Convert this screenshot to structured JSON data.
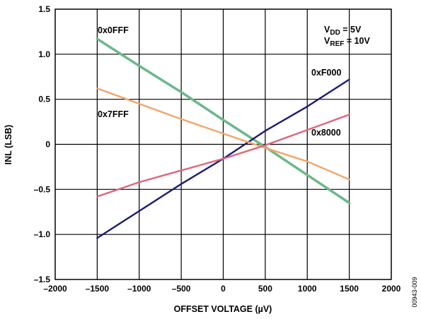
{
  "chart_data": {
    "type": "line",
    "xlabel": "OFFSET VOLTAGE (µV)",
    "ylabel": "INL (LSB)",
    "xlim": [
      -2000,
      2000
    ],
    "ylim": [
      -1.5,
      1.5
    ],
    "x_ticks": [
      -2000,
      -1500,
      -1000,
      -500,
      0,
      500,
      1000,
      1500,
      2000
    ],
    "x_tick_labels": [
      "–2000",
      "–1500",
      "–1000",
      "–500",
      "0",
      "500",
      "1000",
      "1500",
      "2000"
    ],
    "y_ticks": [
      -1.5,
      -1.0,
      -0.5,
      0,
      0.5,
      1.0,
      1.5
    ],
    "y_tick_labels": [
      "–1.5",
      "–1.0",
      "–0.5",
      "0",
      "0.5",
      "1.0",
      "1.5"
    ],
    "grid": true,
    "series": [
      {
        "name": "0x0FFF",
        "color": "#6bb88a",
        "x": [
          -1500,
          -1000,
          -500,
          0,
          500,
          1000,
          1500
        ],
        "y": [
          1.17,
          0.87,
          0.58,
          0.27,
          -0.03,
          -0.34,
          -0.65
        ]
      },
      {
        "name": "0xF000",
        "color": "#1a1a7a",
        "x": [
          -1500,
          -1000,
          -500,
          0,
          500,
          1000,
          1500
        ],
        "y": [
          -1.04,
          -0.74,
          -0.44,
          -0.16,
          0.15,
          0.42,
          0.72
        ]
      },
      {
        "name": "0x7FFF",
        "color": "#f4a468",
        "x": [
          -1500,
          -1000,
          -500,
          0,
          500,
          1000,
          1500
        ],
        "y": [
          0.62,
          0.45,
          0.28,
          0.12,
          -0.04,
          -0.19,
          -0.39
        ]
      },
      {
        "name": "0x8000",
        "color": "#e0657a",
        "x": [
          -1500,
          -1000,
          -500,
          0,
          500,
          1000,
          1500
        ],
        "y": [
          -0.58,
          -0.42,
          -0.29,
          -0.16,
          -0.01,
          0.16,
          0.33
        ]
      }
    ],
    "conditions": {
      "vdd_main": "V",
      "vdd_sub": "DD",
      "vdd_value": " = 5V",
      "vref_main": "V",
      "vref_sub": "REF",
      "vref_value": " = 10V"
    },
    "figure_id": "00943-009"
  }
}
